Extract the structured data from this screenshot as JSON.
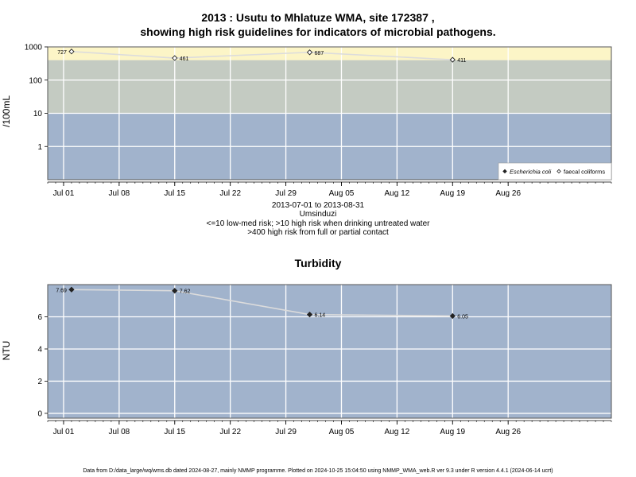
{
  "title_line1": "2013 : Usutu to Mhlatuze WMA, site 172387 ,",
  "title_line2": "showing high risk guidelines for indicators of microbial pathogens.",
  "info_lines": [
    "2013-07-01 to 2013-08-31",
    "Umsinduzi",
    "<=10 low-med risk; >10 high risk when drinking untreated water",
    ">400 high risk from full or partial contact"
  ],
  "footer": "Data from D:/data_large/wq/wms.db dated 2024-08-27, mainly NMMP programme. Plotted on 2024-10-25 15:04:50 using NMMP_WMA_web.R ver 9.3 under R version 4.4.1 (2024-06-14 ucrt)",
  "colors": {
    "band_low": "#a1b3cc",
    "band_mid": "#c4cbc2",
    "band_high": "#fcf5c7",
    "grid": "#ffffff",
    "line": "#dcdcdc"
  },
  "chart_data": [
    {
      "type": "line",
      "title": "",
      "ylabel": "/100mL",
      "scale": "log10",
      "ylim": [
        0.1,
        1000
      ],
      "x_range": [
        "2013-06-29",
        "2013-09-08"
      ],
      "x_ticks": [
        {
          "date": "2013-07-01",
          "label": "Jul 01"
        },
        {
          "date": "2013-07-08",
          "label": "Jul 08"
        },
        {
          "date": "2013-07-15",
          "label": "Jul 15"
        },
        {
          "date": "2013-07-22",
          "label": "Jul 22"
        },
        {
          "date": "2013-07-29",
          "label": "Jul 29"
        },
        {
          "date": "2013-08-05",
          "label": "Aug 05"
        },
        {
          "date": "2013-08-12",
          "label": "Aug 12"
        },
        {
          "date": "2013-08-19",
          "label": "Aug 19"
        },
        {
          "date": "2013-08-26",
          "label": "Aug 26"
        }
      ],
      "y_ticks": [
        {
          "value": 1,
          "label": "1"
        },
        {
          "value": 10,
          "label": "10"
        },
        {
          "value": 100,
          "label": "100"
        },
        {
          "value": 1000,
          "label": "1000"
        }
      ],
      "risk_bands": [
        {
          "from": 0.1,
          "to": 10,
          "color": "#a1b3cc"
        },
        {
          "from": 10,
          "to": 400,
          "color": "#c4cbc2"
        },
        {
          "from": 400,
          "to": 1000,
          "color": "#fcf5c7"
        }
      ],
      "series": [
        {
          "name": "faecal coliforms",
          "marker": "open-diamond",
          "points": [
            {
              "x": "2013-07-02",
              "y": 727,
              "label": "727"
            },
            {
              "x": "2013-07-15",
              "y": 461,
              "label": "461"
            },
            {
              "x": "2013-08-01",
              "y": 687,
              "label": "687"
            },
            {
              "x": "2013-08-19",
              "y": 411,
              "label": "411"
            }
          ]
        }
      ],
      "legend": {
        "position": "bottom-right",
        "entries": [
          {
            "name": "Escherichia coli",
            "marker": "filled-diamond",
            "italic": true
          },
          {
            "name": "faecal coliforms",
            "marker": "open-diamond",
            "italic": false
          }
        ]
      }
    },
    {
      "type": "line",
      "title": "Turbidity",
      "ylabel": "NTU",
      "scale": "linear",
      "ylim": [
        -0.3,
        8.0
      ],
      "x_range": [
        "2013-06-29",
        "2013-09-08"
      ],
      "x_ticks": [
        {
          "date": "2013-07-01",
          "label": "Jul 01"
        },
        {
          "date": "2013-07-08",
          "label": "Jul 08"
        },
        {
          "date": "2013-07-15",
          "label": "Jul 15"
        },
        {
          "date": "2013-07-22",
          "label": "Jul 22"
        },
        {
          "date": "2013-07-29",
          "label": "Jul 29"
        },
        {
          "date": "2013-08-05",
          "label": "Aug 05"
        },
        {
          "date": "2013-08-12",
          "label": "Aug 12"
        },
        {
          "date": "2013-08-19",
          "label": "Aug 19"
        },
        {
          "date": "2013-08-26",
          "label": "Aug 26"
        }
      ],
      "y_ticks": [
        {
          "value": 0,
          "label": "0"
        },
        {
          "value": 2,
          "label": "2"
        },
        {
          "value": 4,
          "label": "4"
        },
        {
          "value": 6,
          "label": "6"
        }
      ],
      "series": [
        {
          "name": "",
          "marker": "filled-diamond",
          "points": [
            {
              "x": "2013-07-02",
              "y": 7.69,
              "label": "7.69"
            },
            {
              "x": "2013-07-15",
              "y": 7.62,
              "label": "7.62"
            },
            {
              "x": "2013-08-01",
              "y": 6.14,
              "label": "6.14"
            },
            {
              "x": "2013-08-19",
              "y": 6.05,
              "label": "6.05"
            }
          ]
        }
      ]
    }
  ]
}
